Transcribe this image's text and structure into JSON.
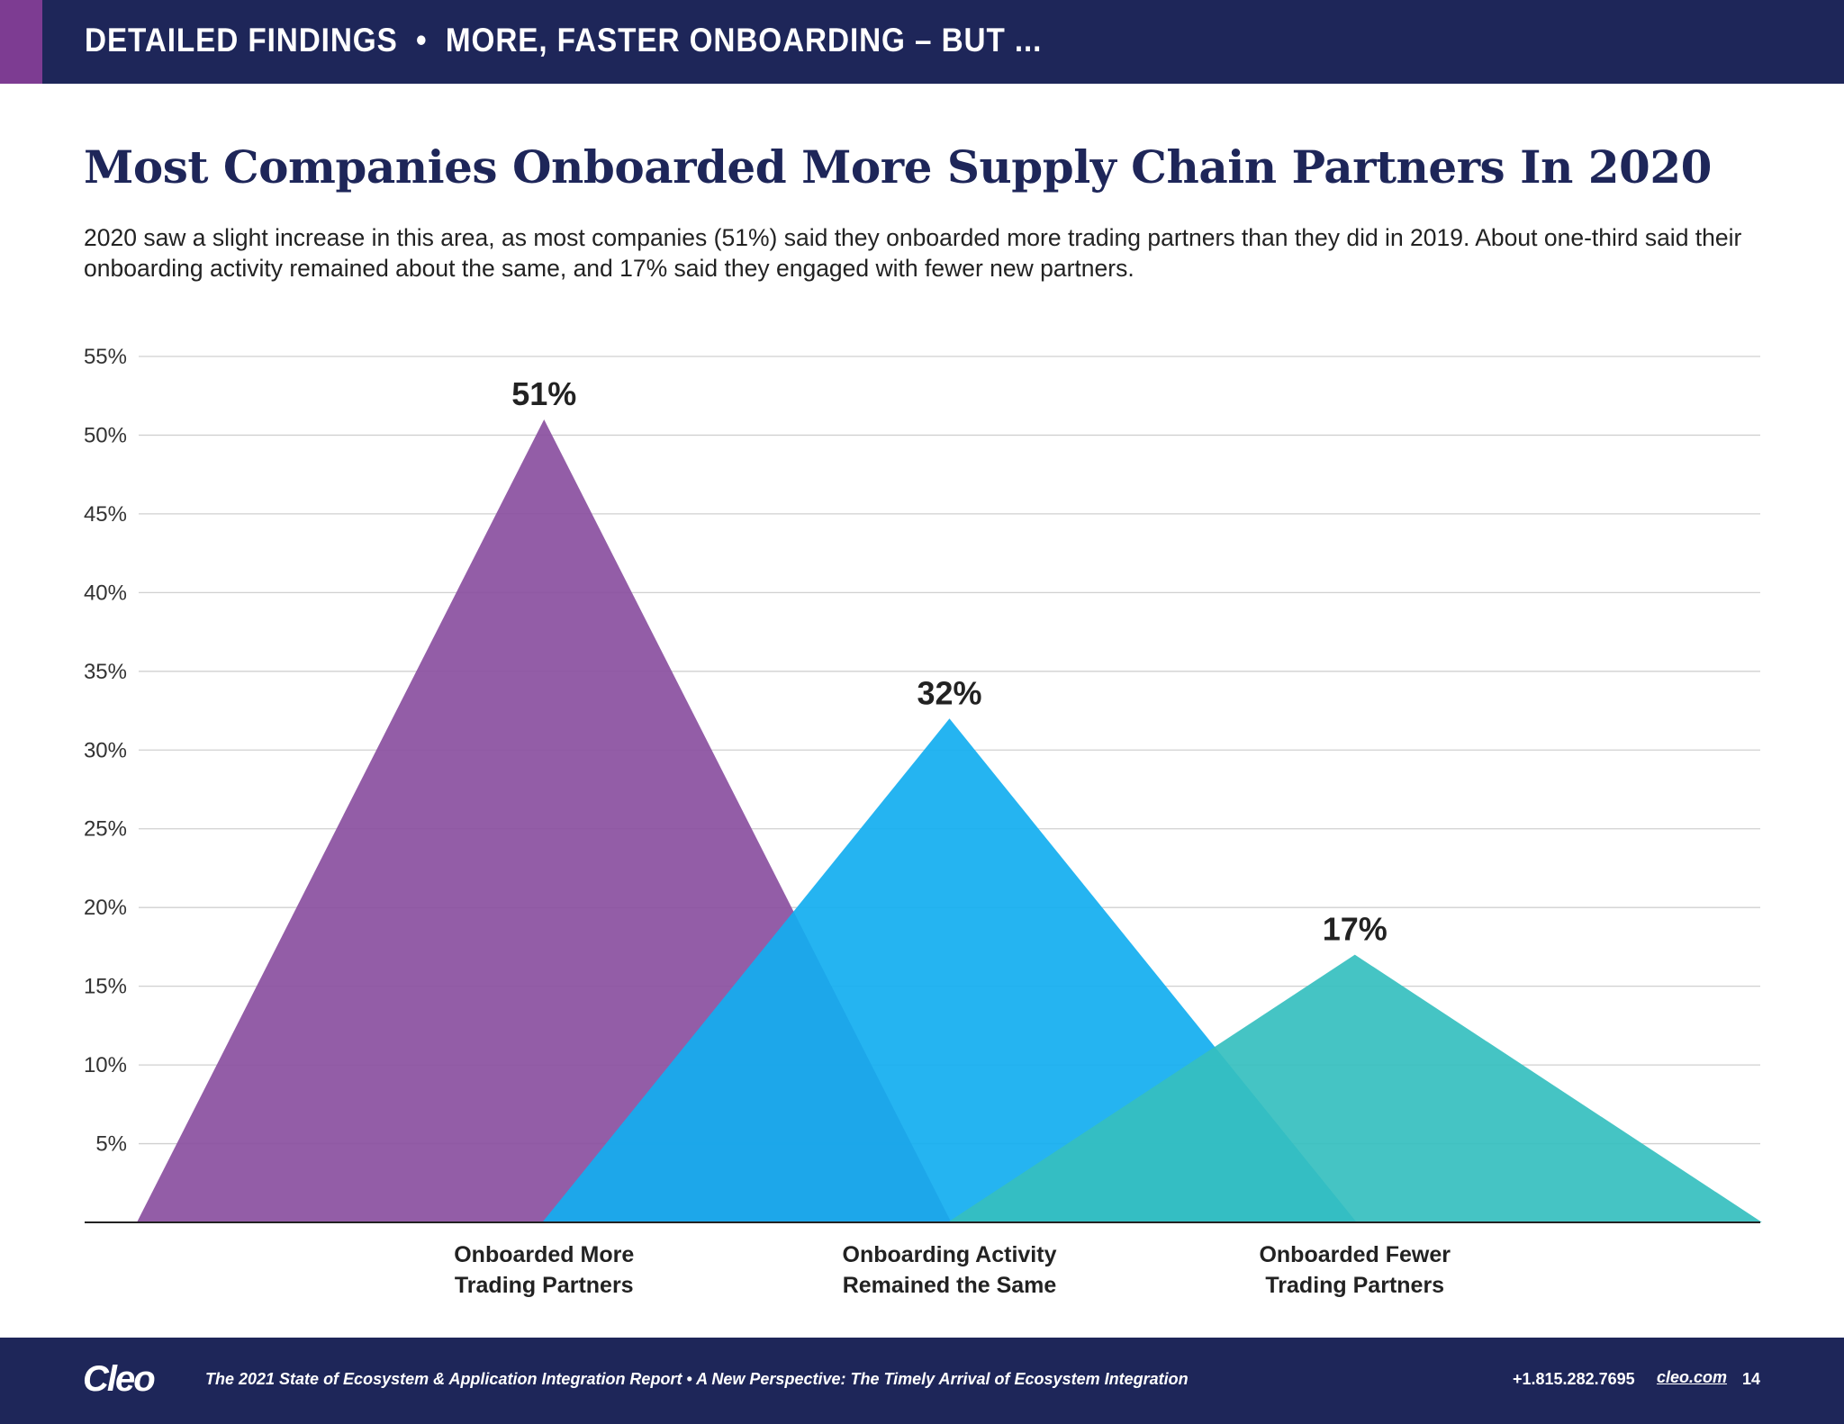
{
  "header": {
    "section": "DETAILED FINDINGS",
    "separator": "•",
    "subtitle": "MORE, FASTER ONBOARDING – BUT ..."
  },
  "title": "Most Companies Onboarded More Supply Chain Partners In 2020",
  "paragraph": "2020 saw a slight increase in this area, as most companies (51%) said they onboarded more trading partners than they did in 2019. About one-third said their onboarding activity remained about the same, and 17% said they engaged with fewer new partners.",
  "chart_data": {
    "type": "bar",
    "style": "overlapping triangles",
    "categories": [
      [
        "Onboarded More",
        "Trading Partners"
      ],
      [
        "Onboarding Activity",
        "Remained the Same"
      ],
      [
        "Onboarded Fewer",
        "Trading Partners"
      ]
    ],
    "values": [
      51,
      32,
      17
    ],
    "data_labels": [
      "51%",
      "32%",
      "17%"
    ],
    "colors": [
      "#8a4f9f",
      "#12aef0",
      "#35bfbf"
    ],
    "yticks": [
      "5%",
      "10%",
      "15%",
      "20%",
      "25%",
      "30%",
      "35%",
      "40%",
      "45%",
      "50%",
      "55%"
    ],
    "ylim": [
      0,
      55
    ],
    "grid": true
  },
  "footer": {
    "logo": "Cleo",
    "report": "The 2021 State of Ecosystem & Application Integration Report  •  A New Perspective: The Timely Arrival of Ecosystem Integration",
    "phone": "+1.815.282.7695",
    "website": "cleo.com",
    "page": "14"
  }
}
